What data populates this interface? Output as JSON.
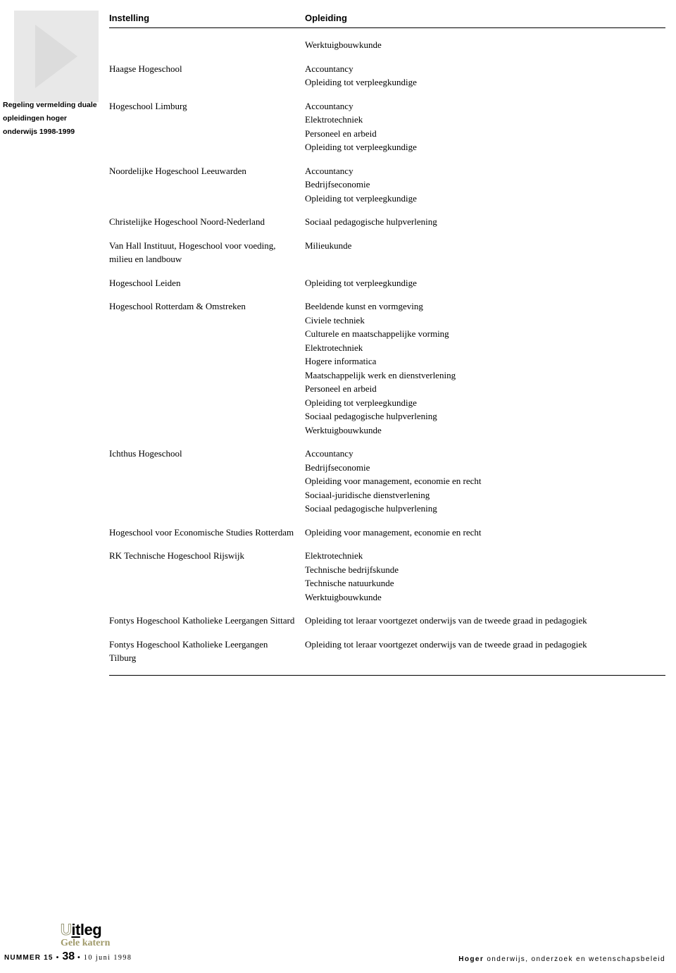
{
  "sidebar": {
    "line1": "Regeling vermelding duale",
    "line2": "opleidingen hoger",
    "line3": "onderwijs 1998-1999"
  },
  "table": {
    "headers": {
      "instelling": "Instelling",
      "opleiding": "Opleiding"
    },
    "rows": [
      {
        "instelling": "",
        "opleidingen": [
          "Werktuigbouwkunde"
        ]
      },
      {
        "instelling": "Haagse Hogeschool",
        "opleidingen": [
          "Accountancy",
          "Opleiding tot verpleegkundige"
        ]
      },
      {
        "instelling": "Hogeschool Limburg",
        "opleidingen": [
          "Accountancy",
          "Elektrotechniek",
          "Personeel en arbeid",
          "Opleiding tot verpleegkundige"
        ]
      },
      {
        "instelling": "Noordelijke Hogeschool Leeuwarden",
        "opleidingen": [
          "Accountancy",
          "Bedrijfseconomie",
          "Opleiding tot verpleegkundige"
        ]
      },
      {
        "instelling": "Christelijke Hogeschool Noord-Nederland",
        "opleidingen": [
          "Sociaal pedagogische hulpverlening"
        ]
      },
      {
        "instelling": "Van Hall Instituut, Hogeschool voor voeding, milieu en landbouw",
        "opleidingen": [
          "Milieukunde"
        ]
      },
      {
        "instelling": "Hogeschool Leiden",
        "opleidingen": [
          "Opleiding tot verpleegkundige"
        ]
      },
      {
        "instelling": "Hogeschool Rotterdam & Omstreken",
        "opleidingen": [
          "Beeldende kunst en vormgeving",
          "Civiele techniek",
          "Culturele en maatschappelijke vorming",
          "Elektrotechniek",
          "Hogere informatica",
          "Maatschappelijk werk en dienstverlening",
          "Personeel en arbeid",
          "Opleiding tot verpleegkundige",
          "Sociaal pedagogische hulpverlening",
          "Werktuigbouwkunde"
        ]
      },
      {
        "instelling": "Ichthus Hogeschool",
        "opleidingen": [
          "Accountancy",
          "Bedrijfseconomie",
          "Opleiding voor management, economie en recht",
          "Sociaal-juridische dienstverlening",
          "Sociaal pedagogische hulpverlening"
        ]
      },
      {
        "instelling": "Hogeschool voor Economische Studies Rotterdam",
        "opleidingen": [
          "Opleiding voor management, economie en recht"
        ]
      },
      {
        "instelling": "RK Technische Hogeschool Rijswijk",
        "opleidingen": [
          "Elektrotechniek",
          "Technische bedrijfskunde",
          "Technische natuurkunde",
          "Werktuigbouwkunde"
        ]
      },
      {
        "instelling": "Fontys Hogeschool Katholieke Leergangen Sittard",
        "opleidingen": [
          "Opleiding tot leraar voortgezet onderwijs van de tweede graad in pedagogiek"
        ]
      },
      {
        "instelling": "Fontys Hogeschool Katholieke Leergangen Tilburg",
        "opleidingen": [
          "Opleiding tot leraar voortgezet onderwijs van de tweede graad in pedagogiek"
        ]
      }
    ]
  },
  "footer": {
    "logo_gele": "Gele katern",
    "issue_prefix": "NUMMER 15",
    "dot": "•",
    "page": "38",
    "date": "10 juni 1998",
    "right_bold": "Hoger",
    "right_rest": " onderwijs, onderzoek en wetenschapsbeleid"
  },
  "colors": {
    "arrow_fill": "#e8e8e8",
    "text": "#000000",
    "gele": "#a09a6a"
  }
}
